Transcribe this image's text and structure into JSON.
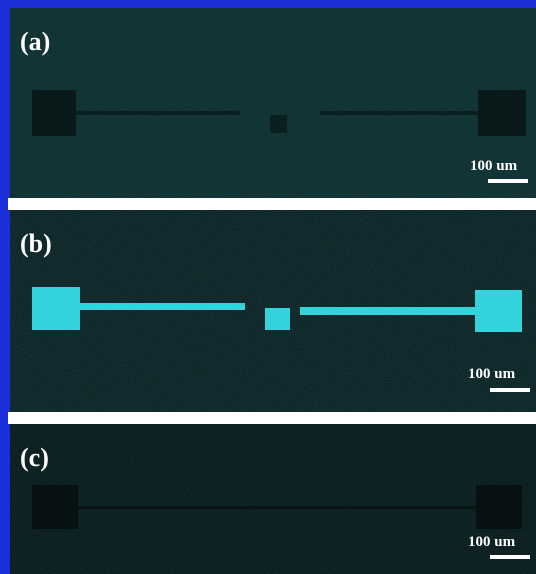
{
  "panels": [
    {
      "label": "(a)",
      "scale": "100 um"
    },
    {
      "label": "(b)",
      "scale": "100 um"
    },
    {
      "label": "(c)",
      "scale": "100 um"
    }
  ]
}
